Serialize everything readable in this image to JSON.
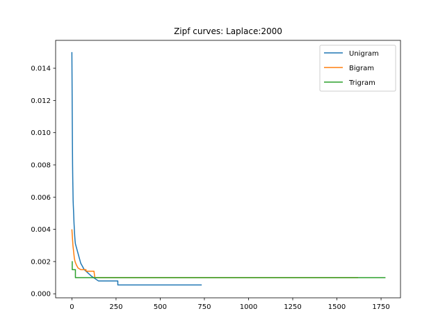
{
  "chart_data": {
    "type": "line",
    "title": "Zipf curves: Laplace:2000",
    "xlabel": "",
    "ylabel": "",
    "xlim": [
      -92,
      1860
    ],
    "ylim": [
      -0.00025,
      0.01573
    ],
    "xticks": [
      0,
      250,
      500,
      750,
      1000,
      1250,
      1500,
      1750
    ],
    "yticks": [
      0.0,
      0.002,
      0.004,
      0.006,
      0.008,
      0.01,
      0.012,
      0.014
    ],
    "ytick_labels": [
      "0.000",
      "0.002",
      "0.004",
      "0.006",
      "0.008",
      "0.010",
      "0.012",
      "0.014"
    ],
    "grid": false,
    "legend_position": "top-right",
    "series": [
      {
        "name": "Unigram",
        "color": "#1f77b4",
        "points": [
          [
            0,
            0.015
          ],
          [
            1,
            0.0132
          ],
          [
            2,
            0.0112
          ],
          [
            3,
            0.0095
          ],
          [
            4,
            0.008
          ],
          [
            5,
            0.0071
          ],
          [
            6,
            0.0065
          ],
          [
            7,
            0.0058
          ],
          [
            8,
            0.0055
          ],
          [
            10,
            0.005
          ],
          [
            12,
            0.0044
          ],
          [
            14,
            0.004
          ],
          [
            16,
            0.0036
          ],
          [
            18,
            0.0033
          ],
          [
            20,
            0.0031
          ],
          [
            25,
            0.0029
          ],
          [
            30,
            0.0027
          ],
          [
            35,
            0.0025
          ],
          [
            40,
            0.0023
          ],
          [
            45,
            0.0021
          ],
          [
            50,
            0.0019
          ],
          [
            60,
            0.0017
          ],
          [
            70,
            0.0015
          ],
          [
            90,
            0.0013
          ],
          [
            110,
            0.0011
          ],
          [
            150,
            0.0008
          ],
          [
            260,
            0.0008
          ],
          [
            260,
            0.00055
          ],
          [
            735,
            0.00055
          ]
        ]
      },
      {
        "name": "Bigram",
        "color": "#ff7f0e",
        "points": [
          [
            0,
            0.004
          ],
          [
            3,
            0.0035
          ],
          [
            6,
            0.003
          ],
          [
            10,
            0.0026
          ],
          [
            14,
            0.0022
          ],
          [
            18,
            0.002
          ],
          [
            25,
            0.0018
          ],
          [
            35,
            0.0016
          ],
          [
            50,
            0.0015
          ],
          [
            80,
            0.0015
          ],
          [
            80,
            0.0014
          ],
          [
            125,
            0.0014
          ],
          [
            130,
            0.001
          ],
          [
            1620,
            0.001
          ]
        ]
      },
      {
        "name": "Trigram",
        "color": "#2ca02c",
        "points": [
          [
            0,
            0.002
          ],
          [
            2,
            0.002
          ],
          [
            2,
            0.0015
          ],
          [
            20,
            0.0015
          ],
          [
            20,
            0.001
          ],
          [
            1775,
            0.001
          ]
        ]
      }
    ]
  }
}
